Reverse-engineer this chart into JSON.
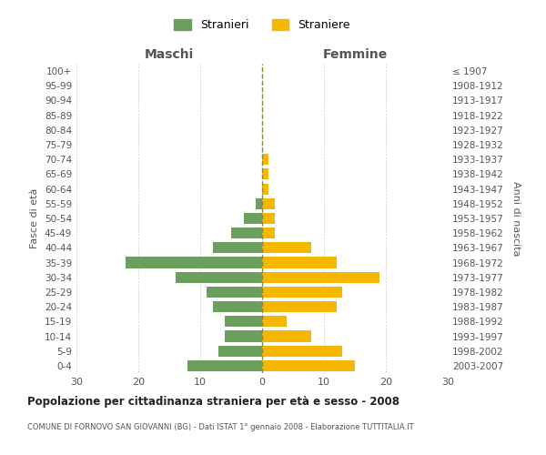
{
  "age_groups": [
    "0-4",
    "5-9",
    "10-14",
    "15-19",
    "20-24",
    "25-29",
    "30-34",
    "35-39",
    "40-44",
    "45-49",
    "50-54",
    "55-59",
    "60-64",
    "65-69",
    "70-74",
    "75-79",
    "80-84",
    "85-89",
    "90-94",
    "95-99",
    "100+"
  ],
  "birth_years": [
    "2003-2007",
    "1998-2002",
    "1993-1997",
    "1988-1992",
    "1983-1987",
    "1978-1982",
    "1973-1977",
    "1968-1972",
    "1963-1967",
    "1958-1962",
    "1953-1957",
    "1948-1952",
    "1943-1947",
    "1938-1942",
    "1933-1937",
    "1928-1932",
    "1923-1927",
    "1918-1922",
    "1913-1917",
    "1908-1912",
    "≤ 1907"
  ],
  "maschi": [
    12,
    7,
    6,
    6,
    8,
    9,
    14,
    22,
    8,
    5,
    3,
    1,
    0,
    0,
    0,
    0,
    0,
    0,
    0,
    0,
    0
  ],
  "femmine": [
    15,
    13,
    8,
    4,
    12,
    13,
    19,
    12,
    8,
    2,
    2,
    2,
    1,
    1,
    1,
    0,
    0,
    0,
    0,
    0,
    0
  ],
  "maschi_color": "#6a9f5e",
  "femmine_color": "#f5b800",
  "center_line_color": "#888840",
  "grid_color": "#cccccc",
  "xlim": 30,
  "title": "Popolazione per cittadinanza straniera per età e sesso - 2008",
  "subtitle": "COMUNE DI FORNOVO SAN GIOVANNI (BG) - Dati ISTAT 1° gennaio 2008 - Elaborazione TUTTITALIA.IT",
  "ylabel_left": "Fasce di età",
  "ylabel_right": "Anni di nascita",
  "legend_maschi": "Stranieri",
  "legend_femmine": "Straniere",
  "bg_color": "#ffffff",
  "bar_height": 0.75
}
